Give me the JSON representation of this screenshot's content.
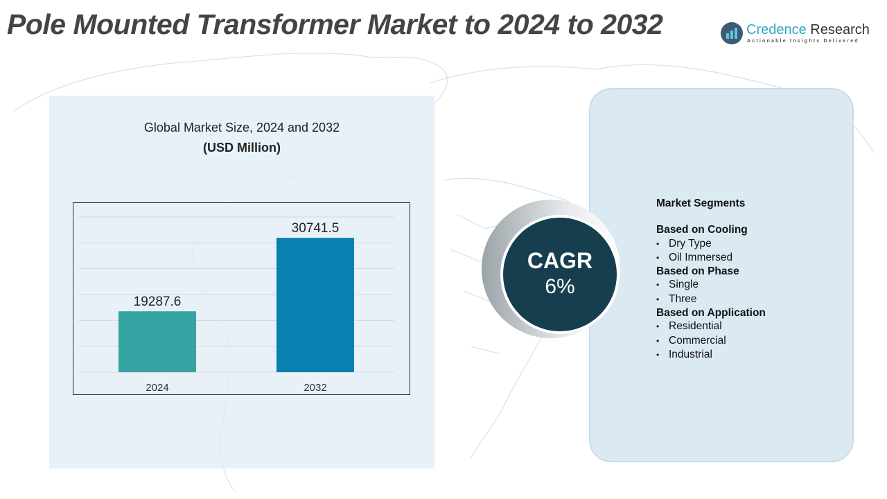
{
  "title": "Pole Mounted Transformer Market to 2024 to 2032",
  "logo": {
    "name_part1": "Credence",
    "name_part2": " Research",
    "tagline": "Actionable Insights Delivered"
  },
  "chart_heading": {
    "line1": "Global Market Size, 2024 and 2032",
    "line2": "(USD Million)"
  },
  "chart_data": {
    "type": "bar",
    "title": "Global Market Size, 2024 and 2032",
    "ylabel": "USD Million",
    "categories": [
      "2024",
      "2032"
    ],
    "values": [
      19287.6,
      30741.5
    ],
    "value_labels": [
      "19287.6",
      "30741.5"
    ],
    "colors": [
      "#35a3a2",
      "#0881b1"
    ],
    "ylim": [
      9800,
      34000
    ],
    "grid": true
  },
  "cagr": {
    "label": "CAGR",
    "value": "6%"
  },
  "segments": {
    "heading": "Market Segments",
    "groups": [
      {
        "title": "Based on Cooling",
        "items": [
          "Dry Type",
          "Oil Immersed"
        ]
      },
      {
        "title": "Based on Phase",
        "items": [
          "Single",
          "Three"
        ]
      },
      {
        "title": "Based on Application",
        "items": [
          "Residential",
          "Commercial",
          "Industrial"
        ]
      }
    ]
  }
}
